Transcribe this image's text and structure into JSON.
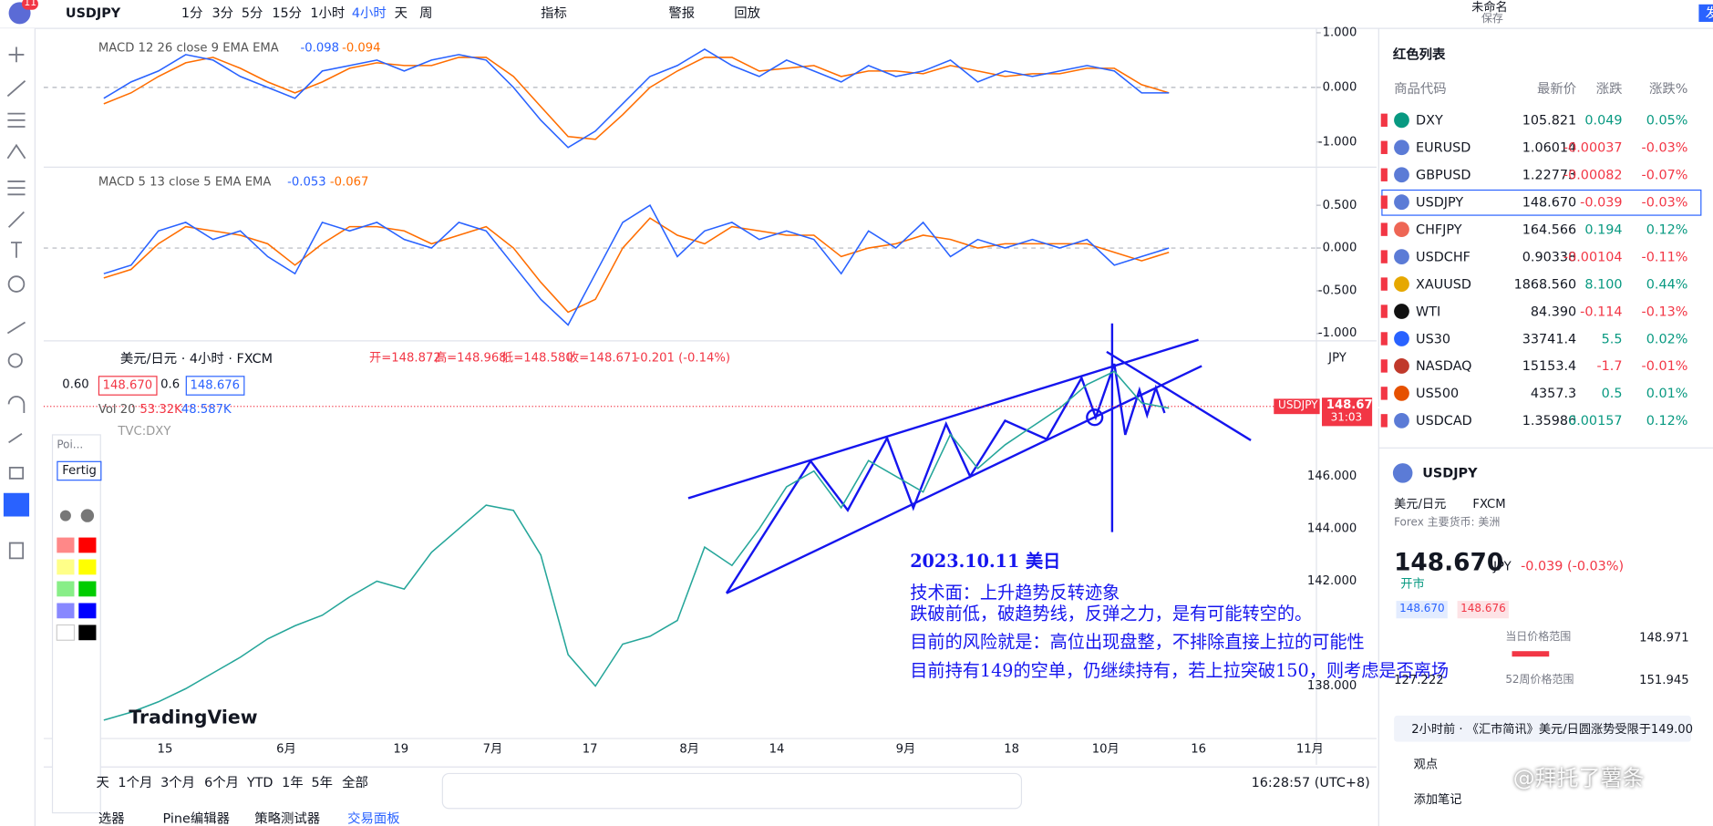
{
  "toolbar": {
    "badge": "11",
    "symbol": "USDJPY",
    "intervals": [
      "1分",
      "3分",
      "5分",
      "15分",
      "1小时",
      "4小时",
      "天",
      "周"
    ],
    "indicators": "指标",
    "alerts": "警报",
    "replay": "回放",
    "layout_name": "未命名",
    "save": "保存",
    "publish": "发"
  },
  "macd_panels": [
    {
      "label": "MACD 12 26 close 9 EMA EMA",
      "macd_value": "-0.098",
      "signal_value": "-0.094",
      "ylim": [
        -1.44,
        1.04
      ],
      "yticks": [
        {
          "value": 1,
          "label": "1.000"
        },
        {
          "value": 0,
          "label": "0.000"
        },
        {
          "value": -1,
          "label": "-1.000"
        }
      ],
      "macd": [
        -0.2,
        0.1,
        0.3,
        0.6,
        0.5,
        0.2,
        0.0,
        -0.2,
        0.3,
        0.4,
        0.5,
        0.3,
        0.5,
        0.6,
        0.5,
        0.0,
        -0.6,
        -1.1,
        -0.8,
        -0.3,
        0.2,
        0.4,
        0.7,
        0.4,
        0.2,
        0.5,
        0.3,
        0.1,
        0.4,
        0.2,
        0.3,
        0.5,
        0.1,
        0.3,
        0.2,
        0.3,
        0.4,
        0.3,
        -0.1,
        -0.1
      ],
      "signal": [
        -0.3,
        -0.1,
        0.2,
        0.45,
        0.55,
        0.35,
        0.1,
        -0.1,
        0.1,
        0.35,
        0.45,
        0.4,
        0.4,
        0.55,
        0.55,
        0.2,
        -0.35,
        -0.9,
        -0.95,
        -0.5,
        0.0,
        0.3,
        0.55,
        0.55,
        0.3,
        0.35,
        0.4,
        0.2,
        0.3,
        0.3,
        0.25,
        0.4,
        0.3,
        0.2,
        0.25,
        0.25,
        0.35,
        0.35,
        0.05,
        -0.1
      ]
    },
    {
      "label": "MACD 5 13 close 5 EMA EMA",
      "macd_value": "-0.053",
      "signal_value": "-0.067",
      "ylim": [
        -1.06,
        0.92
      ],
      "yticks": [
        {
          "value": 0.5,
          "label": "0.500"
        },
        {
          "value": 0,
          "label": "0.000"
        },
        {
          "value": -0.5,
          "label": "-0.500"
        },
        {
          "value": -1,
          "label": "-1.000"
        }
      ],
      "macd": [
        -0.3,
        -0.2,
        0.2,
        0.3,
        0.1,
        0.2,
        -0.1,
        -0.3,
        0.3,
        0.2,
        0.3,
        0.1,
        0.0,
        0.3,
        0.2,
        -0.2,
        -0.6,
        -0.9,
        -0.3,
        0.3,
        0.5,
        -0.1,
        0.2,
        0.3,
        0.1,
        0.2,
        0.1,
        -0.3,
        0.2,
        0.0,
        0.3,
        -0.1,
        0.1,
        0.0,
        0.1,
        0.0,
        0.1,
        -0.2,
        -0.1,
        0.0
      ],
      "signal": [
        -0.35,
        -0.25,
        0.05,
        0.25,
        0.2,
        0.15,
        0.05,
        -0.2,
        0.05,
        0.25,
        0.25,
        0.2,
        0.05,
        0.15,
        0.25,
        0.0,
        -0.4,
        -0.75,
        -0.6,
        0.0,
        0.35,
        0.15,
        0.05,
        0.25,
        0.2,
        0.15,
        0.15,
        -0.1,
        0.0,
        0.05,
        0.15,
        0.1,
        0.0,
        0.05,
        0.05,
        0.05,
        0.05,
        -0.05,
        -0.15,
        -0.05
      ]
    }
  ],
  "main_chart": {
    "title": "美元/日元 · 4小时 · FXCM",
    "open": "开=148.872",
    "high": "高=148.968",
    "low": "低=148.580",
    "close": "收=148.671",
    "change": "-0.201 (-0.14%)",
    "left_value": "0.60",
    "bid": "148.670",
    "spread": "0.6",
    "ask": "148.676",
    "volume_label": "Vol 20",
    "volume_1": "53.32K",
    "volume_2": "48.587K",
    "compare": "TVC:DXY",
    "currency": "JPY",
    "price_tag": {
      "symbol": "USDJPY",
      "price": "148.671",
      "countdown": "31:03"
    },
    "ylim": [
      136.04,
      151.04
    ],
    "yticks": [
      {
        "value": 146,
        "label": "146.000"
      },
      {
        "value": 144,
        "label": "144.000"
      },
      {
        "value": 142,
        "label": "142.000"
      },
      {
        "value": 138,
        "label": "138.000"
      }
    ],
    "prices": [
      136.7,
      137.0,
      137.4,
      137.9,
      138.5,
      139.1,
      139.8,
      140.3,
      140.7,
      141.4,
      142.0,
      141.7,
      143.1,
      144.0,
      144.9,
      144.7,
      143.0,
      139.2,
      138.0,
      139.6,
      139.9,
      140.5,
      143.3,
      142.6,
      144.0,
      145.6,
      146.2,
      144.8,
      146.6,
      146.0,
      145.4,
      147.6,
      146.3,
      147.2,
      147.9,
      148.6,
      149.5,
      150.0,
      148.8,
      148.6
    ],
    "x_labels": [
      "15",
      "6月",
      "19",
      "7月",
      "17",
      "8月",
      "14",
      "9月",
      "18",
      "10月",
      "16",
      "11月"
    ],
    "logo": "TradingView",
    "annotation": {
      "date": "2023.10.11 美日",
      "lines": [
        "技术面：上升趋势反转迹象",
        "跌破前低，破趋势线，反弹之力，是有可能转空的。",
        "目前的风险就是：高位出现盘整，不排除直接上拉的可能性",
        "目前持有149的空单，仍继续持有，若上拉突破150，则考虑是否离场"
      ]
    }
  },
  "drawing_panel": {
    "title": "Poi...",
    "font_button": "Fertig"
  },
  "range_bar": {
    "buttons": [
      "天",
      "1个月",
      "3个月",
      "6个月",
      "YTD",
      "1年",
      "5年",
      "全部"
    ],
    "time": "16:28:57 (UTC+8)"
  },
  "bottom_tabs": [
    "选器",
    "Pine编辑器",
    "策略测试器",
    "交易面板"
  ],
  "watchlist": {
    "title": "红色列表",
    "columns": [
      "商品代码",
      "最新价",
      "涨跌",
      "涨跌%"
    ],
    "rows": [
      [
        "DXY",
        "105.821",
        "0.049",
        "0.05%"
      ],
      [
        "EURUSD",
        "1.06014",
        "-0.00037",
        "-0.03%"
      ],
      [
        "GBPUSD",
        "1.22773",
        "-0.00082",
        "-0.07%"
      ],
      [
        "USDJPY",
        "148.670",
        "-0.039",
        "-0.03%"
      ],
      [
        "CHFJPY",
        "164.566",
        "0.194",
        "0.12%"
      ],
      [
        "USDCHF",
        "0.90338",
        "-0.00104",
        "-0.11%"
      ],
      [
        "XAUUSD",
        "1868.560",
        "8.100",
        "0.44%"
      ],
      [
        "WTI",
        "84.390",
        "-0.114",
        "-0.13%"
      ],
      [
        "US30",
        "33741.4",
        "5.5",
        "0.02%"
      ],
      [
        "NASDAQ",
        "15153.4",
        "-1.7",
        "-0.01%"
      ],
      [
        "US500",
        "4357.3",
        "0.5",
        "0.01%"
      ],
      [
        "USDCAD",
        "1.35986",
        "0.00157",
        "0.12%"
      ]
    ]
  },
  "detail": {
    "symbol": "USDJPY",
    "name": "美元/日元",
    "exchange": "FXCM",
    "category": "Forex 主要货币: 美洲",
    "price": "148.670",
    "currency": "JPY",
    "change": "-0.039 (-0.03%)",
    "status": "开市",
    "bid": "148.670",
    "ask": "148.676",
    "day_range_label": "当日价格范围",
    "day_high": "148.971",
    "week52_low": "127.222",
    "week52_label": "52周价格范围",
    "week52_high": "151.945",
    "news": "2小时前 · 《汇市简讯》美元/日圆涨势受限于149.00",
    "ideas": "观点",
    "add_note": "添加笔记"
  },
  "watermark": "@拜托了薯条"
}
